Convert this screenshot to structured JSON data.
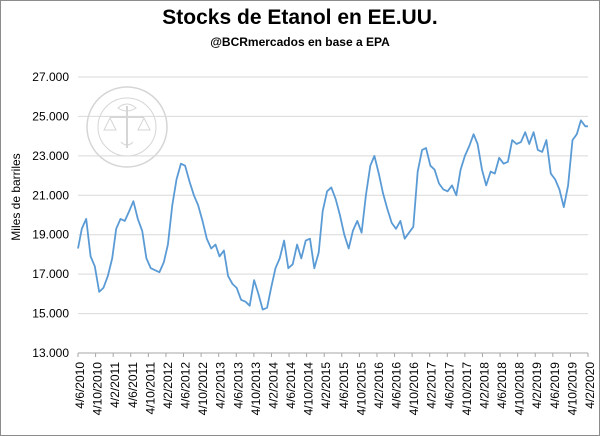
{
  "chart_data": {
    "type": "line",
    "title": "Stocks de Etanol en EE.UU.",
    "subtitle": "@BCRmercados  en base a EPA",
    "xlabel": "",
    "ylabel": "Miles de barriles",
    "ylim": [
      13000,
      27000
    ],
    "y_ticks": [
      "13.000",
      "15.000",
      "17.000",
      "19.000",
      "21.000",
      "23.000",
      "25.000",
      "27.000"
    ],
    "x_ticks": [
      "4/6/2010",
      "4/10/2010",
      "4/2/2011",
      "4/6/2011",
      "4/10/2011",
      "4/2/2012",
      "4/6/2012",
      "4/10/2012",
      "4/2/2013",
      "4/6/2013",
      "4/10/2013",
      "4/2/2014",
      "4/6/2014",
      "4/10/2014",
      "4/2/2015",
      "4/6/2015",
      "4/10/2015",
      "4/2/2016",
      "4/6/2016",
      "4/10/2016",
      "4/2/2017",
      "4/6/2017",
      "4/10/2017",
      "4/2/2018",
      "4/6/2018",
      "4/10/2018",
      "4/2/2019",
      "4/6/2019",
      "4/10/2019",
      "4/2/2020"
    ],
    "grid": "horizontal",
    "legend": "none",
    "series_color": "#5b9bd5",
    "series": [
      {
        "x": [
          "2010-06-04",
          "2010-07-01",
          "2010-08-01",
          "2010-09-01",
          "2010-10-01",
          "2010-11-01",
          "2010-12-01",
          "2011-01-01",
          "2011-02-01",
          "2011-03-01",
          "2011-04-01",
          "2011-05-01",
          "2011-06-01",
          "2011-07-01",
          "2011-08-01",
          "2011-09-01",
          "2011-10-01",
          "2011-11-01",
          "2011-12-01",
          "2012-01-01",
          "2012-02-01",
          "2012-03-01",
          "2012-04-01",
          "2012-05-01",
          "2012-06-01",
          "2012-07-01",
          "2012-08-01",
          "2012-09-01",
          "2012-10-01",
          "2012-11-01",
          "2012-12-01",
          "2013-01-01",
          "2013-02-01",
          "2013-03-01",
          "2013-04-01",
          "2013-05-01",
          "2013-06-01",
          "2013-07-01",
          "2013-08-01",
          "2013-09-01",
          "2013-10-01",
          "2013-11-01",
          "2013-12-01",
          "2014-01-01",
          "2014-02-01",
          "2014-03-01",
          "2014-04-01",
          "2014-05-01",
          "2014-06-01",
          "2014-07-01",
          "2014-08-01",
          "2014-09-01",
          "2014-10-01",
          "2014-11-01",
          "2014-12-01",
          "2015-01-01",
          "2015-02-01",
          "2015-03-01",
          "2015-04-01",
          "2015-05-01",
          "2015-06-01",
          "2015-07-01",
          "2015-08-01",
          "2015-09-01",
          "2015-10-01",
          "2015-11-01",
          "2015-12-01",
          "2016-01-01",
          "2016-02-01",
          "2016-03-01",
          "2016-04-01",
          "2016-05-01",
          "2016-06-01",
          "2016-07-01",
          "2016-08-01",
          "2016-09-01",
          "2016-10-01",
          "2016-11-01",
          "2016-12-01",
          "2017-01-01",
          "2017-02-01",
          "2017-03-01",
          "2017-04-01",
          "2017-05-01",
          "2017-06-01",
          "2017-07-01",
          "2017-08-01",
          "2017-09-01",
          "2017-10-01",
          "2017-11-01",
          "2017-12-01",
          "2018-01-01",
          "2018-02-01",
          "2018-03-01",
          "2018-04-01",
          "2018-05-01",
          "2018-06-01",
          "2018-07-01",
          "2018-08-01",
          "2018-09-01",
          "2018-10-01",
          "2018-11-01",
          "2018-12-01",
          "2019-01-01",
          "2019-02-01",
          "2019-03-01",
          "2019-04-01",
          "2019-05-01",
          "2019-06-01",
          "2019-07-01",
          "2019-08-01",
          "2019-09-01",
          "2019-10-01",
          "2019-11-01",
          "2019-12-01",
          "2020-01-01",
          "2020-02-01",
          "2020-03-01",
          "2020-04-01",
          "2020-04-20"
        ],
        "values": [
          18300,
          19300,
          19800,
          17900,
          17400,
          16100,
          16300,
          16900,
          17800,
          19300,
          19800,
          19700,
          20200,
          20700,
          19800,
          19200,
          17800,
          17300,
          17200,
          17100,
          17600,
          18500,
          20500,
          21800,
          22600,
          22500,
          21700,
          21000,
          20500,
          19700,
          18800,
          18300,
          18500,
          17900,
          18200,
          16900,
          16500,
          16300,
          15700,
          15600,
          15400,
          16700,
          16000,
          15200,
          15300,
          16300,
          17300,
          17800,
          18700,
          17300,
          17500,
          18500,
          17800,
          18700,
          18800,
          17300,
          18100,
          20200,
          21200,
          21400,
          20800,
          20000,
          19000,
          18300,
          19200,
          19700,
          19100,
          21000,
          22500,
          23000,
          22100,
          21100,
          20300,
          19600,
          19300,
          19700,
          18800,
          19100,
          19400,
          22200,
          23300,
          23400,
          22500,
          22300,
          21600,
          21300,
          21200,
          21500,
          21000,
          22300,
          23000,
          23500,
          24100,
          23600,
          22300,
          21500,
          22200,
          22100,
          22900,
          22600,
          22700,
          23800,
          23600,
          23700,
          24200,
          23600,
          24200,
          23300,
          23200,
          23800,
          22100,
          21800,
          21300,
          20400,
          21500,
          23800,
          24100,
          24800,
          24500,
          24500
        ]
      }
    ]
  }
}
